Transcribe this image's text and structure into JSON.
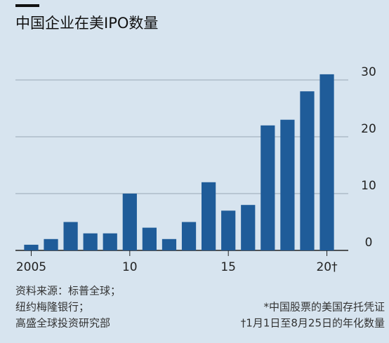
{
  "chart_data": {
    "type": "bar",
    "title": "中国企业在美IPO数量",
    "x": [
      2005,
      2006,
      2007,
      2008,
      2009,
      2010,
      2011,
      2012,
      2013,
      2014,
      2015,
      2016,
      2017,
      2018,
      2019,
      2020
    ],
    "values": [
      1,
      2,
      5,
      3,
      3,
      10,
      4,
      2,
      5,
      12,
      7,
      8,
      22,
      23,
      28,
      31
    ],
    "color": "#1f5c99",
    "xlim": [
      2004.2,
      2020.8
    ],
    "xticks": [
      {
        "value": 2005,
        "label": "2005"
      },
      {
        "value": 2010,
        "label": "10"
      },
      {
        "value": 2015,
        "label": "15"
      },
      {
        "value": 2020,
        "label": "20†"
      }
    ],
    "ylim": [
      0,
      30
    ],
    "yticks": [
      0,
      10,
      20,
      30
    ],
    "grid": true,
    "source": [
      "资料来源：标普全球；",
      "纽约梅隆银行；",
      "高盛全球投资研究部"
    ],
    "notes": [
      "*中国股票的美国存托凭证",
      "†1月1日至8月25日的年化数量"
    ]
  }
}
